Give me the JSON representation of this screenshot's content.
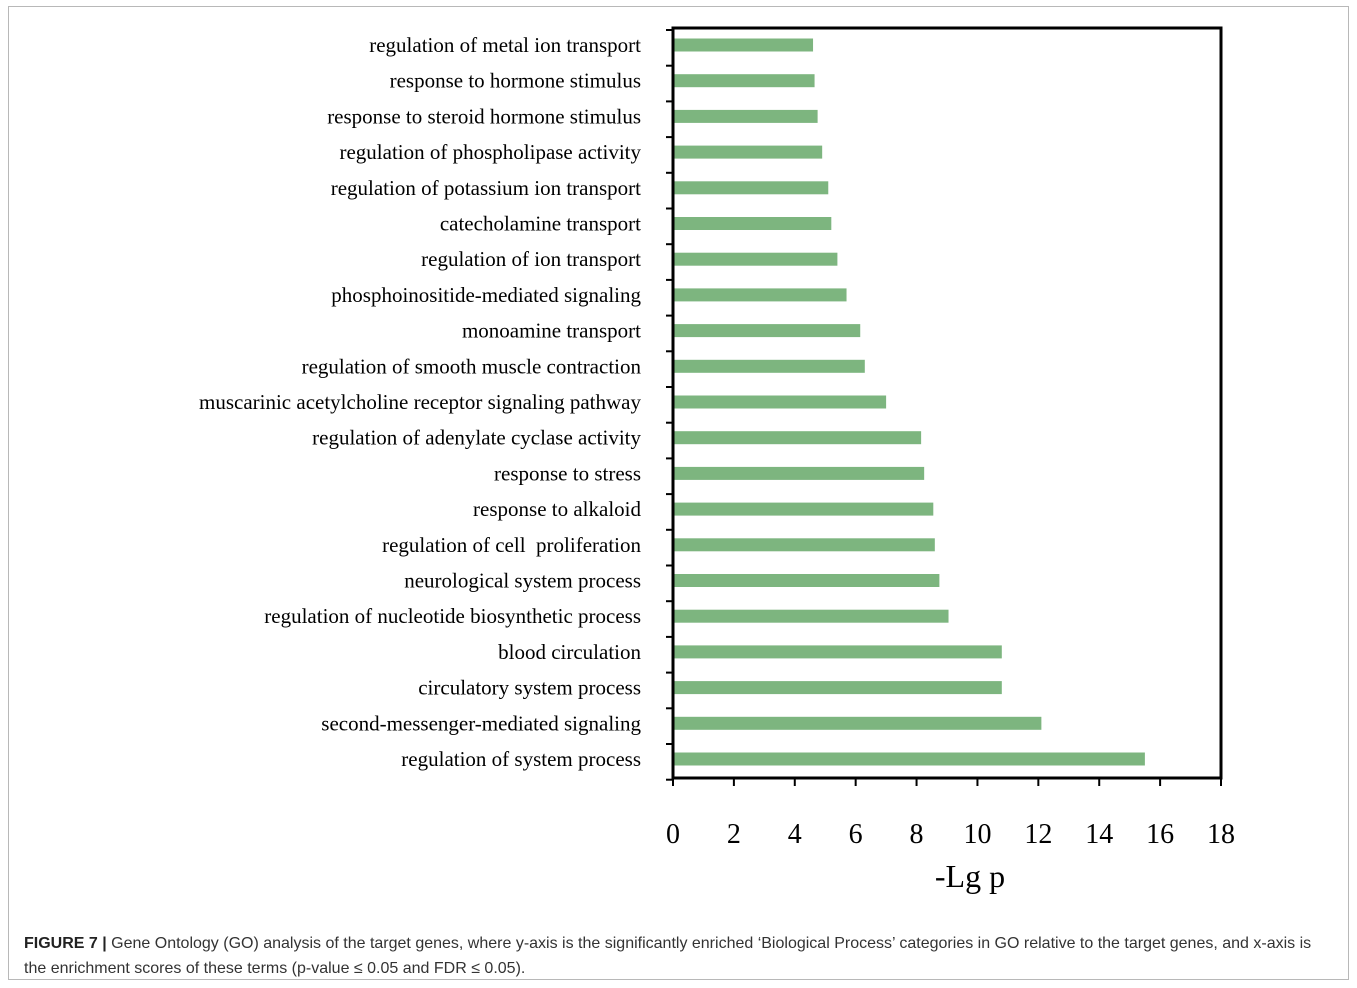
{
  "chart_data": {
    "type": "bar",
    "orientation": "horizontal",
    "categories": [
      "regulation of metal ion transport",
      "response to hormone stimulus",
      "response to steroid hormone stimulus",
      "regulation of phospholipase activity",
      "regulation of potassium ion transport",
      "catecholamine transport",
      "regulation of ion transport",
      "phosphoinositide-mediated signaling",
      "monoamine transport",
      "regulation of smooth muscle contraction",
      "muscarinic acetylcholine receptor signaling pathway",
      "regulation of adenylate cyclase activity",
      "response to stress",
      "response to alkaloid",
      "regulation of cell  proliferation",
      "neurological system process",
      "regulation of nucleotide biosynthetic process",
      "blood circulation",
      "circulatory system process",
      "second-messenger-mediated signaling",
      "regulation of system process"
    ],
    "values": [
      4.6,
      4.65,
      4.75,
      4.9,
      5.1,
      5.2,
      5.4,
      5.7,
      6.15,
      6.3,
      7.0,
      8.15,
      8.25,
      8.55,
      8.6,
      8.75,
      9.05,
      10.8,
      10.8,
      12.1,
      15.5
    ],
    "xlabel": "-Lg p",
    "ylabel": "",
    "xlim": [
      0,
      18
    ],
    "xticks": [
      "0",
      "2",
      "4",
      "6",
      "8",
      "10",
      "12",
      "14",
      "16",
      "18"
    ],
    "bar_color": "#7db57f",
    "grid": false
  },
  "caption": {
    "label": "FIGURE 7 |",
    "text": " Gene Ontology (GO) analysis of the target genes, where y-axis is the significantly enriched ‘Biological Process’ categories in GO relative to the target genes, and x-axis is the enrichment scores of these terms (p-value ≤ 0.05 and FDR ≤ 0.05)."
  }
}
